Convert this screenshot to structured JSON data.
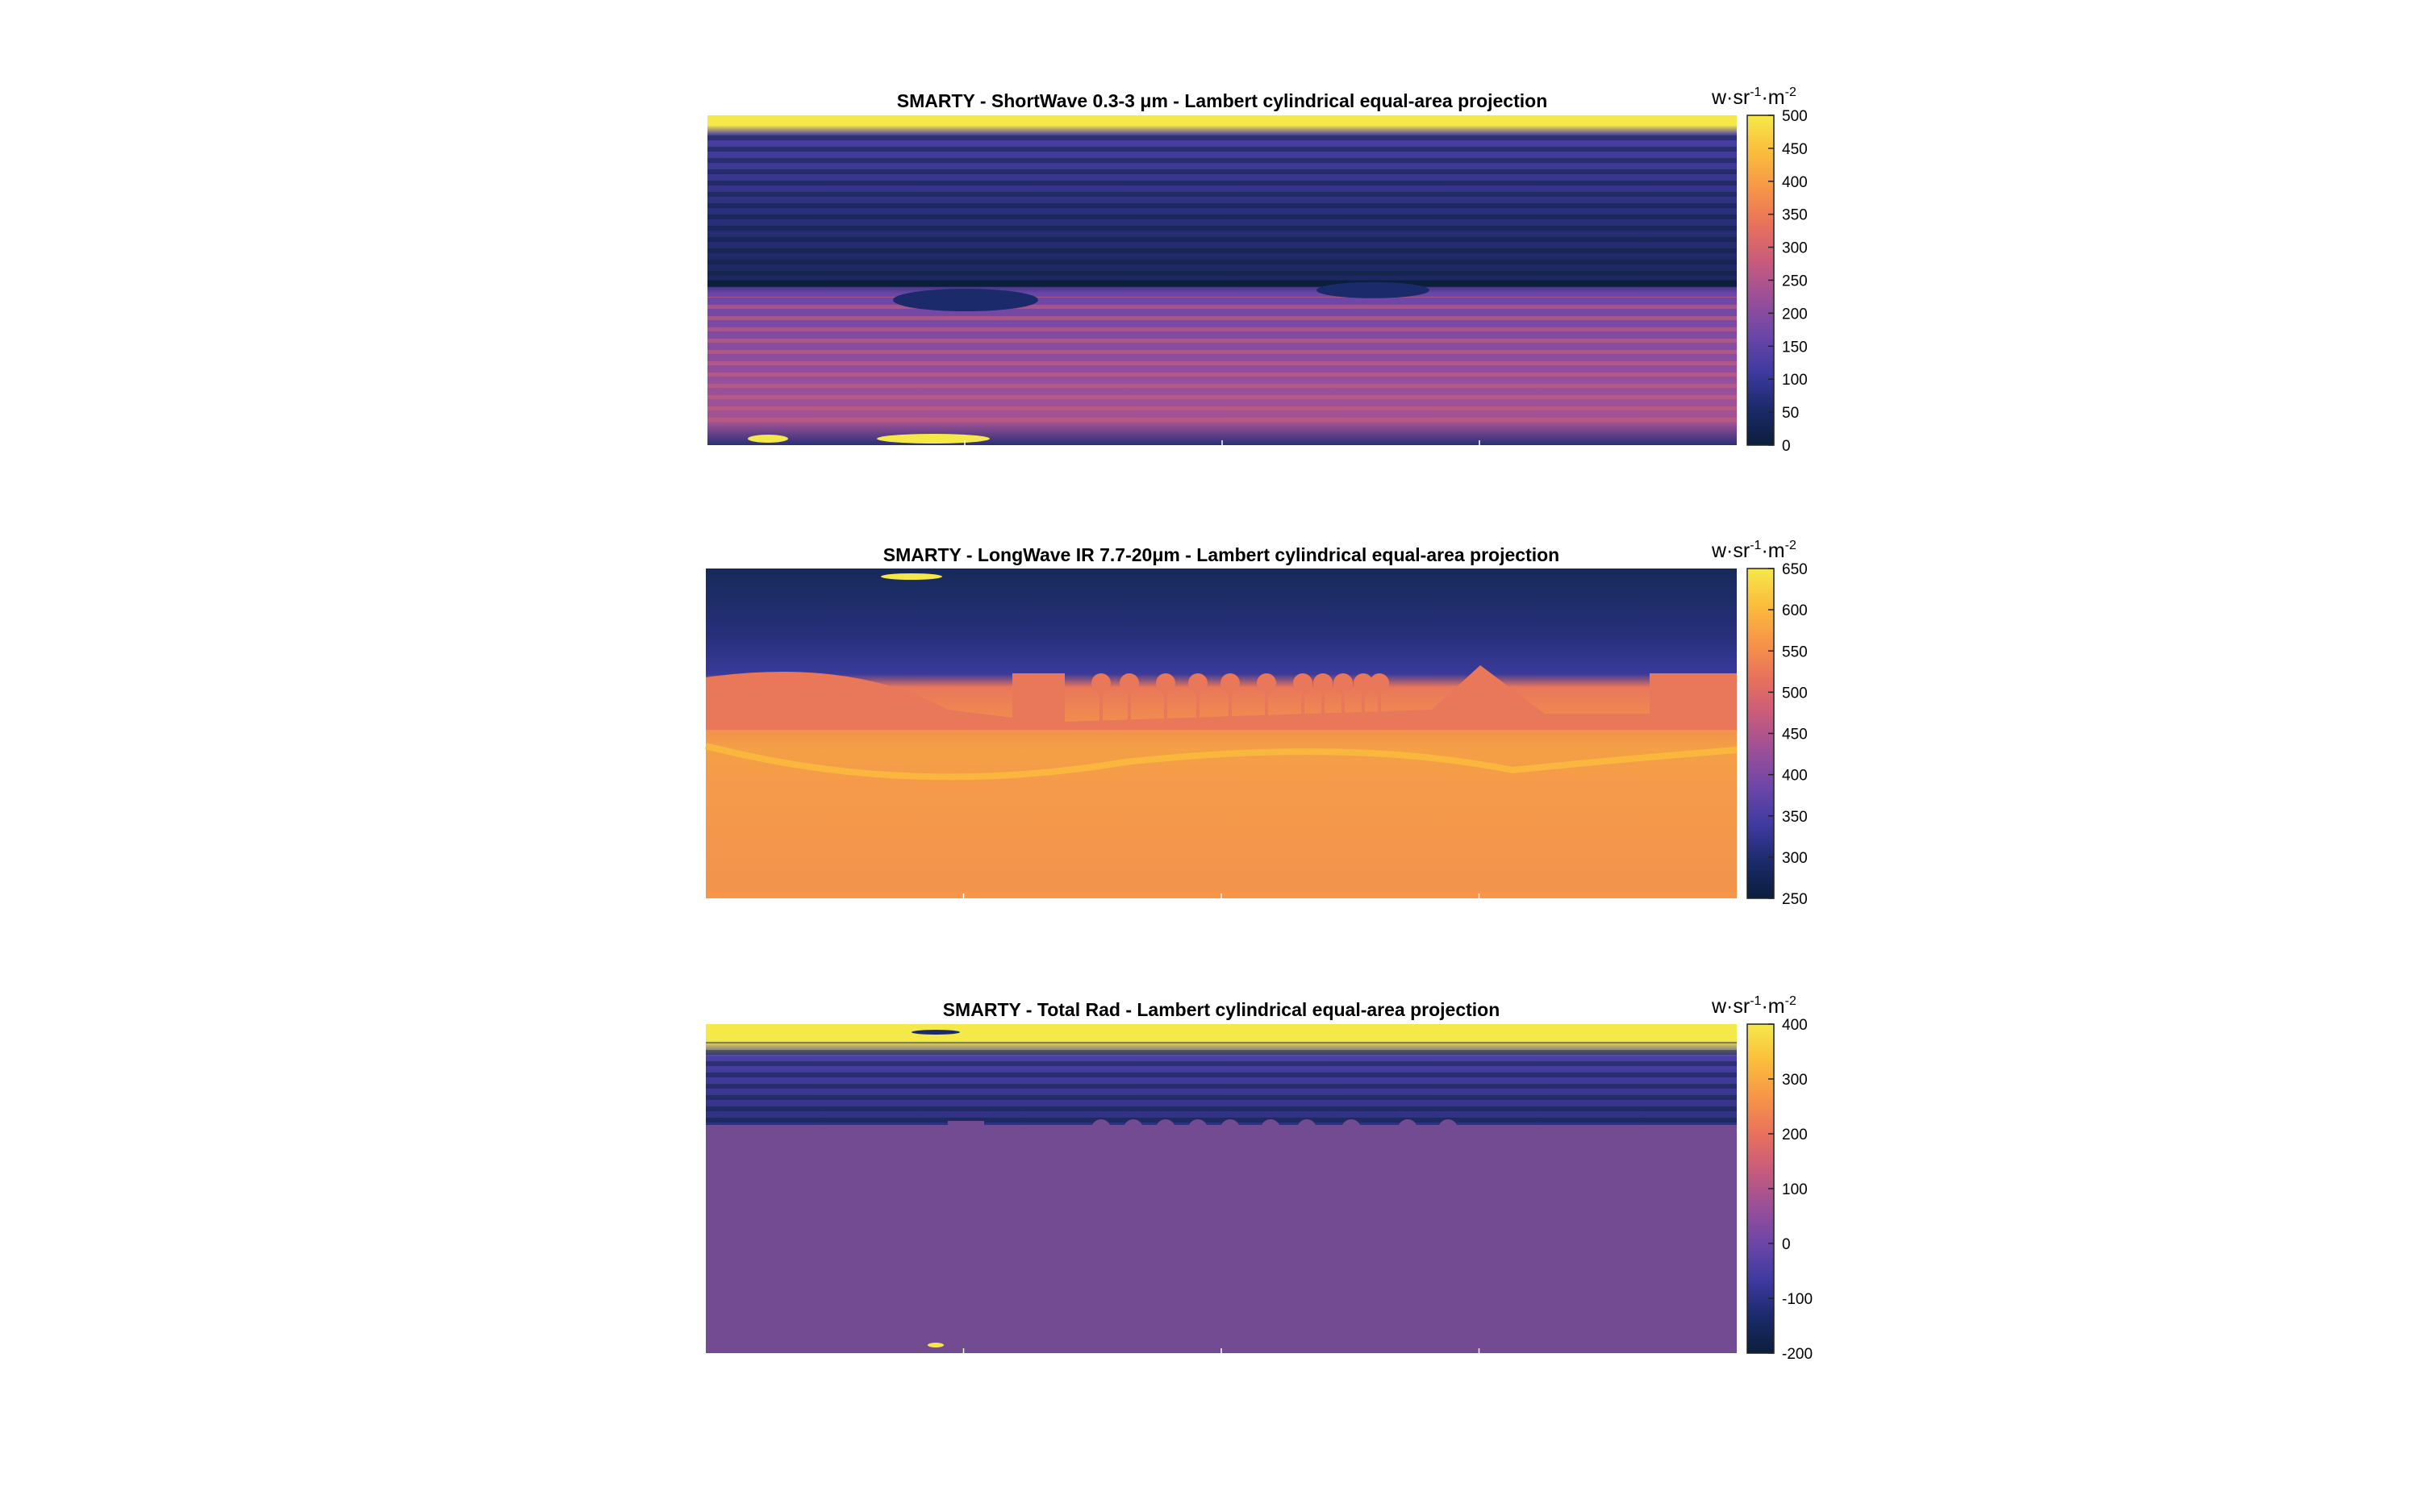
{
  "chart_data": [
    {
      "type": "heatmap",
      "title": "SMARTY - ShortWave 0.3-3 μm - Lambert cylindrical equal-area projection",
      "colorbar": {
        "label": "w·sr-1·m-2",
        "label_parts": [
          "w·sr",
          "-1",
          "·m",
          "-2"
        ],
        "min": 0,
        "max": 500,
        "ticks": [
          0,
          50,
          100,
          150,
          200,
          250,
          300,
          350,
          400,
          450,
          500
        ]
      },
      "colormap": "plasma-like",
      "colormap_stops": [
        "#0b1e3c",
        "#1b2a6b",
        "#3f3aa1",
        "#6b46a8",
        "#9a4f99",
        "#c85b7c",
        "#e8715c",
        "#f79548",
        "#fbbd3c",
        "#f5e94a"
      ]
    },
    {
      "type": "heatmap",
      "title": "SMARTY - LongWave IR 7.7-20μm - Lambert cylindrical equal-area projection",
      "colorbar": {
        "label": "w·sr-1·m-2",
        "label_parts": [
          "w·sr",
          "-1",
          "·m",
          "-2"
        ],
        "min": 250,
        "max": 650,
        "ticks": [
          250,
          300,
          350,
          400,
          450,
          500,
          550,
          600,
          650
        ]
      },
      "colormap": "plasma-like",
      "colormap_stops": [
        "#0b1e3c",
        "#1b2a6b",
        "#3f3aa1",
        "#6b46a8",
        "#9a4f99",
        "#c85b7c",
        "#e8715c",
        "#f79548",
        "#fbbd3c",
        "#f5e94a"
      ]
    },
    {
      "type": "heatmap",
      "title": "SMARTY - Total Rad - Lambert cylindrical equal-area projection",
      "colorbar": {
        "label": "w·sr-1·m-2",
        "label_parts": [
          "w·sr",
          "-1",
          "·m",
          "-2"
        ],
        "min": -200,
        "max": 400,
        "ticks": [
          -200,
          -100,
          0,
          100,
          200,
          300,
          400
        ]
      },
      "colormap": "plasma-like",
      "colormap_stops": [
        "#0b1e3c",
        "#1b2a6b",
        "#3f3aa1",
        "#6b46a8",
        "#9a4f99",
        "#c85b7c",
        "#e8715c",
        "#f79548",
        "#fbbd3c",
        "#f5e94a"
      ]
    }
  ]
}
